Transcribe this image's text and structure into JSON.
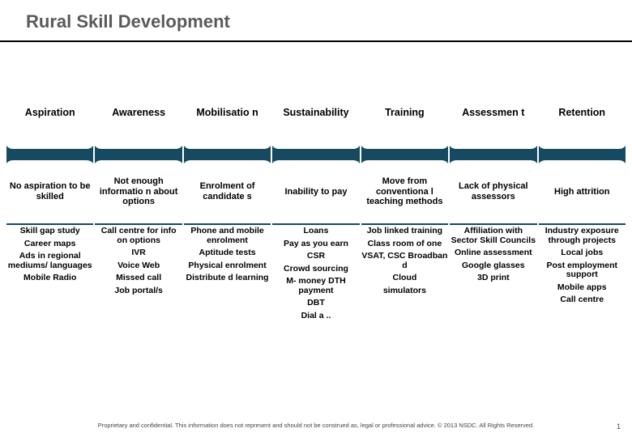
{
  "title": "Rural Skill Development",
  "copy": "Proprietary and confidential. This information does not represent and should not be construed as, legal or professional advice. © 2013 NSDC. All Rights Reserved.",
  "page": "1",
  "pillars": [
    {
      "header": "Aspiration",
      "issue": "No aspiration to be skilled",
      "sol": [
        "Skill gap study",
        "Career maps",
        "Ads in regional mediums/ languages",
        "Mobile Radio"
      ]
    },
    {
      "header": "Awareness",
      "issue": "Not enough informatio n about options",
      "sol": [
        "Call centre for info on options",
        "IVR",
        "Voice Web",
        "Missed call",
        "Job portal/s"
      ]
    },
    {
      "header": "Mobilisatio n",
      "issue": "Enrolment of candidate s",
      "sol": [
        "Phone and mobile enrolment",
        "Aptitude tests",
        "Physical enrolment",
        "Distribute d learning"
      ]
    },
    {
      "header": "Sustainability",
      "issue": "Inability to pay",
      "sol": [
        "Loans",
        "Pay as you earn",
        "CSR",
        "Crowd sourcing",
        "M- money DTH payment",
        "DBT",
        "Dial a .."
      ]
    },
    {
      "header": "Training",
      "issue": "Move from conventiona l teaching methods",
      "sol": [
        "Job linked training",
        "Class room of one",
        "VSAT, CSC Broadban d",
        "Cloud",
        "simulators"
      ]
    },
    {
      "header": "Assessmen t",
      "issue": "Lack of physical assessors",
      "sol": [
        "Affiliation with Sector Skill Councils",
        "Online assessment",
        "Google glasses",
        "3D print"
      ]
    },
    {
      "header": "Retention",
      "issue": "High attrition",
      "sol": [
        "Industry exposure through projects",
        "Local jobs",
        "Post employment support",
        "Mobile apps",
        "Call centre"
      ]
    }
  ],
  "colors": {
    "pillar_bg": "#154a60",
    "hr": "#000000",
    "title": "#5a5a5a"
  }
}
